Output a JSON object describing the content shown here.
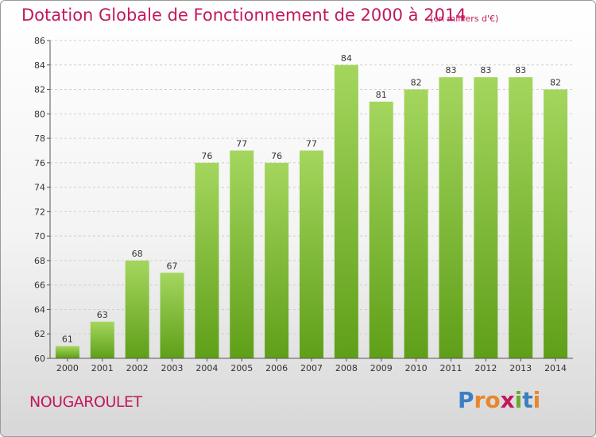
{
  "title": "Dotation Globale de Fonctionnement de 2000 à 2014",
  "unit_note": "(en milliers d'€)",
  "commune": "NOUGAROULET",
  "logo": {
    "letters": [
      "P",
      "r",
      "o",
      "x",
      "i",
      "t",
      "i"
    ],
    "colors": [
      "#3a7fc4",
      "#e8862d",
      "#e8862d",
      "#c2185b",
      "#6aab2e",
      "#3a7fc4",
      "#e8862d"
    ]
  },
  "colors": {
    "bar_top": "#a4d65e",
    "bar_bottom": "#5f9f18",
    "accent": "#c2185b"
  },
  "chart_data": {
    "type": "bar",
    "categories": [
      "2000",
      "2001",
      "2002",
      "2003",
      "2004",
      "2005",
      "2006",
      "2007",
      "2008",
      "2009",
      "2010",
      "2011",
      "2012",
      "2013",
      "2014"
    ],
    "values": [
      61,
      63,
      68,
      67,
      76,
      77,
      76,
      77,
      84,
      81,
      82,
      83,
      83,
      83,
      82
    ],
    "ylim": [
      60,
      86
    ],
    "yticks": [
      60,
      62,
      64,
      66,
      68,
      70,
      72,
      74,
      76,
      78,
      80,
      82,
      84,
      86
    ],
    "grid": true,
    "data_labels": true
  }
}
